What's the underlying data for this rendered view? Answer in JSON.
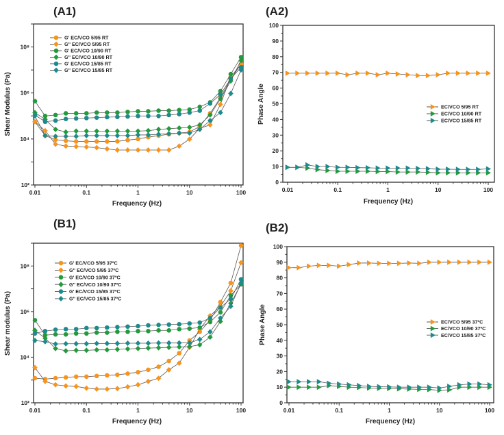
{
  "colors": {
    "orange": "#f7941d",
    "green": "#239a3b",
    "teal": "#1e8a8c",
    "line": "#555555"
  },
  "chart_data": [
    {
      "id": "A1",
      "title": "(A1)",
      "type": "line",
      "xlabel": "Frequency (Hz)",
      "ylabel": "Shear Modulus (Pa)",
      "xscale": "log",
      "yscale": "log",
      "xlim": [
        0.01,
        100
      ],
      "ylim": [
        100,
        1000000000.0
      ],
      "xticks": [
        0.01,
        0.1,
        1,
        10,
        100
      ],
      "xtick_labels": [
        "0.01",
        "0.1",
        "1",
        "10",
        "100"
      ],
      "yticks": [
        100,
        10000,
        1000000,
        100000000
      ],
      "ytick_labels": [
        "10²",
        "10⁴",
        "10⁶",
        "10⁸"
      ],
      "legend_position": "top-left",
      "x": [
        0.01,
        0.0158,
        0.0251,
        0.0398,
        0.0631,
        0.1,
        0.158,
        0.251,
        0.398,
        0.631,
        1,
        1.58,
        2.51,
        3.98,
        6.31,
        10,
        15.8,
        25.1,
        39.8,
        63.1,
        100
      ],
      "series": [
        {
          "name": "G' EC/VCO 5/95 RT",
          "color": "orange",
          "marker": "circle",
          "values": [
            56000.0,
            14000.0,
            9300.0,
            8300.0,
            7800.0,
            7800.0,
            7800.0,
            7800.0,
            7900.0,
            8900.0,
            10000.0,
            12000.0,
            14000.0,
            16000.0,
            18000.0,
            20000.0,
            35000.0,
            130000.0,
            630000.0,
            4000000.0,
            18000000.0
          ]
        },
        {
          "name": "G'' EC/VCO 5/95 RT",
          "color": "orange",
          "marker": "diamond",
          "values": [
            56000.0,
            23000.0,
            5900.0,
            4900.0,
            4700.0,
            4500.0,
            4200.0,
            3700.0,
            3300.0,
            3300.0,
            3300.0,
            3300.0,
            3300.0,
            3300.0,
            4900.0,
            9800.0,
            29000.0,
            41000.0,
            320000.0,
            5000000.0,
            18000000.0
          ]
        },
        {
          "name": "G' EC/VCO 10/90 RT",
          "color": "green",
          "marker": "circle",
          "values": [
            440000.0,
            100000.0,
            110000.0,
            130000.0,
            130000.0,
            130000.0,
            140000.0,
            140000.0,
            140000.0,
            150000.0,
            160000.0,
            160000.0,
            170000.0,
            170000.0,
            180000.0,
            190000.0,
            250000.0,
            390000.0,
            1200000.0,
            6600000.0,
            36000000.0
          ]
        },
        {
          "name": "G'' EC/VCO 10/90 RT",
          "color": "green",
          "marker": "diamond",
          "values": [
            140000.0,
            71000.0,
            26000.0,
            20000.0,
            22000.0,
            22000.0,
            22000.0,
            22000.0,
            22000.0,
            22000.0,
            22000.0,
            23000.0,
            26000.0,
            28000.0,
            30000.0,
            32000.0,
            41000.0,
            110000.0,
            550000.0,
            3300000.0,
            26000000.0
          ]
        },
        {
          "name": "G' EC/VCO 15/85 RT",
          "color": "teal",
          "marker": "circle",
          "values": [
            110000.0,
            56000.0,
            63000.0,
            74000.0,
            78000.0,
            81000.0,
            85000.0,
            89000.0,
            91000.0,
            95000.0,
            100000.0,
            100000.0,
            100000.0,
            110000.0,
            120000.0,
            140000.0,
            170000.0,
            350000.0,
            850000.0,
            4200000.0,
            13000000.0
          ]
        },
        {
          "name": "G'' EC/VCO 15/85 RT",
          "color": "teal",
          "marker": "diamond",
          "values": [
            100000.0,
            14000.0,
            13000.0,
            13000.0,
            13000.0,
            14000.0,
            14000.0,
            14000.0,
            14000.0,
            14000.0,
            15000.0,
            15000.0,
            16000.0,
            17000.0,
            18000.0,
            18000.0,
            26000.0,
            63000.0,
            140000.0,
            950000.0,
            10000000.0
          ]
        }
      ]
    },
    {
      "id": "A2",
      "title": "(A2)",
      "type": "line",
      "xlabel": "Frequency (Hz)",
      "ylabel": "Phase Angle",
      "xscale": "log",
      "yscale": "linear",
      "xlim": [
        0.01,
        100
      ],
      "ylim": [
        0,
        100
      ],
      "xticks": [
        0.01,
        0.1,
        1,
        10,
        100
      ],
      "xtick_labels": [
        "0.01",
        "0.1",
        "1",
        "10",
        "100"
      ],
      "yticks": [
        0,
        10,
        20,
        30,
        40,
        50,
        60,
        70,
        80,
        90,
        100
      ],
      "ytick_labels": [
        "0",
        "10",
        "20",
        "30",
        "40",
        "50",
        "60",
        "70",
        "80",
        "90",
        "100"
      ],
      "legend_position": "center-right",
      "x": [
        0.01,
        0.0158,
        0.0251,
        0.0398,
        0.0631,
        0.1,
        0.158,
        0.251,
        0.398,
        0.631,
        1,
        1.58,
        2.51,
        3.98,
        6.31,
        10,
        15.8,
        25.1,
        39.8,
        63.1,
        100
      ],
      "series": [
        {
          "name": "EC/VCO 5/95 RT",
          "color": "orange",
          "marker": "triangle-right",
          "values": [
            69.5,
            69.5,
            69.5,
            69.5,
            69.5,
            69.5,
            68.5,
            69.5,
            69.5,
            68.5,
            69.5,
            69,
            68.5,
            68,
            68,
            68.5,
            69.5,
            69.5,
            69.5,
            69.5,
            69.5
          ]
        },
        {
          "name": "EC/VCO 10/90 RT",
          "color": "green",
          "marker": "triangle-right",
          "values": [
            9.5,
            9.5,
            9,
            8,
            7.5,
            7,
            7,
            7,
            7,
            6.8,
            6.8,
            6.5,
            6.5,
            6.5,
            6.3,
            6,
            6,
            6,
            6,
            6,
            6
          ]
        },
        {
          "name": "EC/VCO 15/85 RT",
          "color": "teal",
          "marker": "triangle-right",
          "values": [
            9.5,
            9.5,
            11,
            10,
            10,
            9.5,
            9.5,
            9.3,
            9.2,
            9,
            9,
            9,
            9,
            8.8,
            8.6,
            8.3,
            8.3,
            8.2,
            8.2,
            8.2,
            8.5
          ]
        }
      ]
    },
    {
      "id": "B1",
      "title": "(B1)",
      "type": "line",
      "xlabel": "Frequency (Hz)",
      "ylabel": "Shear modulus (Pa)",
      "xscale": "log",
      "yscale": "log",
      "xlim": [
        0.01,
        100
      ],
      "ylim": [
        100,
        1000000000.0
      ],
      "xticks": [
        0.01,
        0.1,
        1,
        10,
        100
      ],
      "xtick_labels": [
        "0.01",
        "0.1",
        "1",
        "10",
        "100"
      ],
      "yticks": [
        100,
        10000,
        1000000,
        100000000
      ],
      "ytick_labels": [
        "10²",
        "10⁴",
        "10⁶",
        "10⁸"
      ],
      "legend_position": "top-left",
      "x": [
        0.01,
        0.0158,
        0.0251,
        0.0398,
        0.0631,
        0.1,
        0.158,
        0.251,
        0.398,
        0.631,
        1,
        1.58,
        2.51,
        3.98,
        6.31,
        10,
        15.8,
        25.1,
        39.8,
        63.1,
        100
      ],
      "series": [
        {
          "name": "G' EC/VCO 5/95 37ºC",
          "color": "orange",
          "marker": "circle",
          "values": [
            1200.0,
            1100.0,
            1200.0,
            1300.0,
            1400.0,
            1400.0,
            1500.0,
            1600.0,
            1700.0,
            1900.0,
            2200.0,
            2800.0,
            3800.0,
            6800.0,
            15000.0,
            54000.0,
            130000.0,
            420000.0,
            2600000.0,
            18000000.0,
            790000000.0
          ]
        },
        {
          "name": "G'' EC/VCO 5/95 37ºC",
          "color": "orange",
          "marker": "diamond",
          "values": [
            3500.0,
            870.0,
            620.0,
            550.0,
            520.0,
            440.0,
            400.0,
            400.0,
            420.0,
            500.0,
            620.0,
            870.0,
            1200.0,
            2800.0,
            5500.0,
            27000.0,
            170000.0,
            660000.0,
            1700000.0,
            8100000.0,
            140000000.0
          ]
        },
        {
          "name": "G' EC/VCO 10/90 37ºC",
          "color": "green",
          "marker": "circle",
          "values": [
            420000.0,
            93000.0,
            100000.0,
            100000.0,
            110000.0,
            110000.0,
            120000.0,
            120000.0,
            130000.0,
            130000.0,
            140000.0,
            140000.0,
            150000.0,
            150000.0,
            170000.0,
            180000.0,
            200000.0,
            350000.0,
            930000.0,
            5100000.0,
            16000000.0
          ]
        },
        {
          "name": "G'' EC/VCO 10/90 37ºC",
          "color": "green",
          "marker": "diamond",
          "values": [
            150000.0,
            68000.0,
            24000.0,
            19000.0,
            20000.0,
            20000.0,
            21000.0,
            21000.0,
            22000.0,
            23000.0,
            24000.0,
            25000.0,
            26000.0,
            27000.0,
            28000.0,
            29000.0,
            35000.0,
            76000.0,
            370000.0,
            2300000.0,
            16000000.0
          ]
        },
        {
          "name": "G' EC/VCO 15/85 37ºC",
          "color": "teal",
          "marker": "circle",
          "values": [
            110000.0,
            140000.0,
            160000.0,
            170000.0,
            170000.0,
            190000.0,
            190000.0,
            200000.0,
            210000.0,
            220000.0,
            230000.0,
            250000.0,
            260000.0,
            270000.0,
            280000.0,
            300000.0,
            330000.0,
            520000.0,
            1500000.0,
            3600000.0,
            26000000.0
          ]
        },
        {
          "name": "G'' EC/VCO 15/85 37ºC",
          "color": "teal",
          "marker": "diamond",
          "values": [
            54000.0,
            48000.0,
            38000.0,
            39000.0,
            39000.0,
            39000.0,
            40000.0,
            40000.0,
            40000.0,
            41000.0,
            41000.0,
            41000.0,
            42000.0,
            42000.0,
            42000.0,
            43000.0,
            60000.0,
            130000.0,
            520000.0,
            1700000.0,
            18000000.0
          ]
        }
      ]
    },
    {
      "id": "B2",
      "title": "(B2)",
      "type": "line",
      "xlabel": "Frequency (Hz)",
      "ylabel": "Phase Angle",
      "xscale": "log",
      "yscale": "linear",
      "xlim": [
        0.01,
        100
      ],
      "ylim": [
        0,
        100
      ],
      "xticks": [
        0.01,
        0.1,
        1,
        10,
        100
      ],
      "xtick_labels": [
        "0.01",
        "0.1",
        "1",
        "10",
        "100"
      ],
      "yticks": [
        0,
        10,
        20,
        30,
        40,
        50,
        60,
        70,
        80,
        90,
        100
      ],
      "ytick_labels": [
        "0",
        "10",
        "20",
        "30",
        "40",
        "50",
        "60",
        "70",
        "80",
        "90",
        "100"
      ],
      "legend_position": "center-right",
      "x": [
        0.01,
        0.0158,
        0.0251,
        0.0398,
        0.0631,
        0.1,
        0.158,
        0.251,
        0.398,
        0.631,
        1,
        1.58,
        2.51,
        3.98,
        6.31,
        10,
        15.8,
        25.1,
        39.8,
        63.1,
        100
      ],
      "series": [
        {
          "name": "EC/VCO 5/95 37ºC",
          "color": "orange",
          "marker": "triangle-right",
          "values": [
            86.5,
            86.5,
            87.5,
            88,
            88,
            87.5,
            88.5,
            89.5,
            89.5,
            89.3,
            89.3,
            89.3,
            89.5,
            89.3,
            90,
            90,
            90,
            90,
            90,
            90,
            90
          ]
        },
        {
          "name": "EC/VCO 10/90 37ºC",
          "color": "green",
          "marker": "triangle-right",
          "values": [
            10,
            10,
            10,
            10,
            11,
            10.5,
            10,
            9.8,
            9.5,
            9.3,
            9.2,
            9,
            8.8,
            8.6,
            8.5,
            8,
            8.3,
            10,
            10,
            10,
            10
          ]
        },
        {
          "name": "EC/VCO 15/85 37ºC",
          "color": "teal",
          "marker": "triangle-right",
          "values": [
            13.5,
            13.5,
            13.5,
            13.5,
            12.5,
            12,
            11.5,
            11,
            10.5,
            10.3,
            10.2,
            10,
            10,
            10,
            10,
            9.5,
            10.5,
            11.5,
            12,
            12,
            11.5
          ]
        }
      ]
    }
  ]
}
